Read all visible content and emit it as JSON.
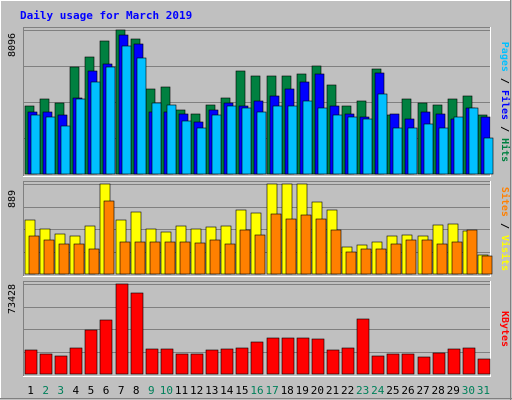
{
  "chart_data": {
    "type": "bar",
    "title": "Daily usage for March 2019",
    "categories": [
      "1",
      "2",
      "3",
      "4",
      "5",
      "6",
      "7",
      "8",
      "9",
      "10",
      "11",
      "12",
      "13",
      "14",
      "15",
      "16",
      "17",
      "18",
      "19",
      "20",
      "21",
      "22",
      "23",
      "24",
      "25",
      "26",
      "27",
      "28",
      "29",
      "30",
      "31"
    ],
    "weekend_days": [
      "2",
      "3",
      "9",
      "10",
      "16",
      "17",
      "23",
      "24",
      "30",
      "31"
    ],
    "panels": [
      {
        "name": "hits",
        "max_label": "8096",
        "ymax": 8096,
        "side_labels": [
          "Pages",
          "Files",
          "Hits"
        ],
        "series": [
          {
            "name": "Hits",
            "color": "#008040",
            "values": [
              3800,
              4200,
              4000,
              6000,
              6600,
              7500,
              8096,
              7600,
              4800,
              4900,
              3600,
              3400,
              3900,
              4300,
              5800,
              5500,
              5500,
              5500,
              5600,
              6100,
              5000,
              3800,
              4100,
              5900,
              3300,
              4200,
              4000,
              3900,
              4200,
              4400,
              3300
            ]
          },
          {
            "name": "Files",
            "color": "#0000FF",
            "values": [
              3500,
              3500,
              3300,
              4300,
              5800,
              6200,
              7800,
              7300,
              3500,
              3500,
              3400,
              2900,
              3600,
              4000,
              3800,
              4100,
              4400,
              4800,
              5200,
              5600,
              3800,
              3400,
              3200,
              5700,
              3400,
              3100,
              3500,
              3400,
              3100,
              3700,
              3200
            ]
          },
          {
            "name": "Pages",
            "color": "#00C0FF",
            "values": [
              3300,
              3200,
              2700,
              4200,
              5200,
              6000,
              7200,
              6500,
              4000,
              3900,
              3000,
              2600,
              3300,
              3800,
              3700,
              3500,
              3800,
              3800,
              4100,
              3700,
              3300,
              3200,
              3100,
              4500,
              2600,
              2600,
              2800,
              2600,
              3200,
              3700,
              2000
            ]
          }
        ]
      },
      {
        "name": "visits",
        "max_label": "889",
        "ymax": 889,
        "side_labels": [
          "Sites",
          "Visits"
        ],
        "series": [
          {
            "name": "Visits",
            "color": "#FFFF00",
            "values": [
              530,
              440,
              400,
              380,
              470,
              889,
              530,
              610,
              440,
              410,
              470,
              440,
              460,
              470,
              630,
              600,
              889,
              889,
              889,
              710,
              630,
              270,
              290,
              320,
              380,
              390,
              380,
              480,
              490,
              420,
              190
            ]
          },
          {
            "name": "Sites",
            "color": "#FF8000",
            "values": [
              380,
              340,
              300,
              300,
              250,
              720,
              320,
              320,
              320,
              320,
              320,
              310,
              340,
              300,
              430,
              390,
              590,
              540,
              580,
              540,
              430,
              220,
              250,
              250,
              300,
              340,
              340,
              300,
              320,
              430,
              180
            ]
          }
        ]
      },
      {
        "name": "kbytes",
        "max_label": "73428",
        "ymax": 73428,
        "side_labels": [
          "KBytes"
        ],
        "series": [
          {
            "name": "KBytes",
            "color": "#FF0000",
            "values": [
              19500,
              16500,
              15000,
              21500,
              36000,
              44000,
              73428,
              66000,
              20500,
              20500,
              16500,
              16500,
              19500,
              20000,
              21500,
              26000,
              29000,
              29500,
              29500,
              28500,
              19500,
              21500,
              44500,
              14500,
              16000,
              16500,
              14000,
              17000,
              20500,
              21000,
              12500
            ]
          }
        ]
      }
    ]
  }
}
